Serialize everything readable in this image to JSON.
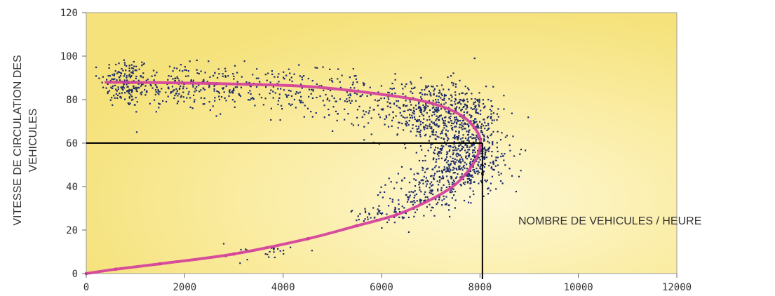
{
  "chart_data": {
    "type": "scatter",
    "title": "",
    "xlabel": "NOMBRE DE VEHICULES / HEURE",
    "ylabel_line1": "VITESSE DE CIRCULATION DES",
    "ylabel_line2": "VEHICULES",
    "xlim": [
      0,
      12000
    ],
    "ylim": [
      0,
      120
    ],
    "x_ticks": [
      0,
      2000,
      4000,
      6000,
      8000,
      10000,
      12000
    ],
    "y_ticks": [
      0,
      20,
      40,
      60,
      80,
      100,
      120
    ],
    "x_tick_labels": [
      "0",
      "2000",
      "4000",
      "6000",
      "8000",
      "10000",
      "12000"
    ],
    "y_tick_labels": [
      "0",
      "20",
      "40",
      "60",
      "80",
      "100",
      "120"
    ],
    "grid": false,
    "legend": "none",
    "series": [
      {
        "kind": "scatter-clusters",
        "color": "#1a2a6a",
        "clusters": [
          {
            "cx": 800,
            "cy": 88,
            "sx": 250,
            "sy": 6,
            "n": 160
          },
          {
            "cx": 1800,
            "cy": 86,
            "sx": 500,
            "sy": 5,
            "n": 160
          },
          {
            "cx": 3300,
            "cy": 85,
            "sx": 700,
            "sy": 5,
            "n": 160
          },
          {
            "cx": 5000,
            "cy": 82,
            "sx": 600,
            "sy": 6,
            "n": 120
          },
          {
            "cx": 6900,
            "cy": 75,
            "sx": 600,
            "sy": 7,
            "n": 380
          },
          {
            "cx": 7700,
            "cy": 68,
            "sx": 400,
            "sy": 9,
            "n": 300
          },
          {
            "cx": 7800,
            "cy": 55,
            "sx": 450,
            "sy": 6,
            "n": 240
          },
          {
            "cx": 7500,
            "cy": 45,
            "sx": 450,
            "sy": 5,
            "n": 200
          },
          {
            "cx": 6800,
            "cy": 36,
            "sx": 400,
            "sy": 4,
            "n": 110
          },
          {
            "cx": 6100,
            "cy": 27,
            "sx": 350,
            "sy": 3,
            "n": 60
          },
          {
            "cx": 3600,
            "cy": 10,
            "sx": 400,
            "sy": 2,
            "n": 28
          }
        ]
      },
      {
        "kind": "fit-curve",
        "color": "#d43f9c",
        "points": [
          [
            0,
            0
          ],
          [
            600,
            2
          ],
          [
            1500,
            4.5
          ],
          [
            3000,
            9
          ],
          [
            4500,
            16
          ],
          [
            5500,
            22
          ],
          [
            6300,
            27
          ],
          [
            7000,
            34
          ],
          [
            7500,
            41
          ],
          [
            7850,
            50
          ],
          [
            8000,
            58
          ],
          [
            7950,
            65
          ],
          [
            7600,
            73
          ],
          [
            6900,
            79
          ],
          [
            5800,
            83
          ],
          [
            4500,
            86
          ],
          [
            3000,
            87.2
          ],
          [
            1500,
            87.8
          ],
          [
            400,
            88
          ]
        ]
      }
    ],
    "annotations": [
      {
        "type": "reference-lines",
        "x": 8050,
        "y": 60,
        "color": "#000000"
      }
    ]
  }
}
